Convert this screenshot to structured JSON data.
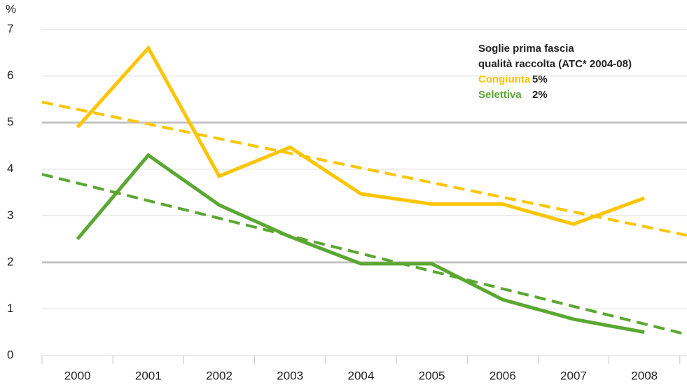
{
  "chart_data": {
    "type": "line",
    "y_label": "%",
    "categories": [
      "2000",
      "2001",
      "2002",
      "2003",
      "2004",
      "2005",
      "2006",
      "2007",
      "2008"
    ],
    "series": [
      {
        "name": "Congiunta",
        "color": "#fcc500",
        "values": [
          4.9,
          6.6,
          3.85,
          4.47,
          3.47,
          3.25,
          3.25,
          2.82,
          3.38
        ],
        "trend": [
          5.44,
          2.58
        ],
        "threshold": 5,
        "threshold_label": "5%"
      },
      {
        "name": "Selettiva",
        "color": "#5aa731",
        "values": [
          2.5,
          4.3,
          3.23,
          2.55,
          1.97,
          1.97,
          1.2,
          0.78,
          0.5
        ],
        "trend": [
          3.89,
          0.45
        ],
        "threshold": 2,
        "threshold_label": "2%"
      }
    ],
    "legend_title": [
      "Soglie prima fascia",
      "qualità raccolta (ATC* 2004-08)"
    ],
    "ylim": [
      0,
      7
    ],
    "yticks": [
      0,
      1,
      2,
      3,
      4,
      5,
      6,
      7
    ],
    "grid": true
  }
}
